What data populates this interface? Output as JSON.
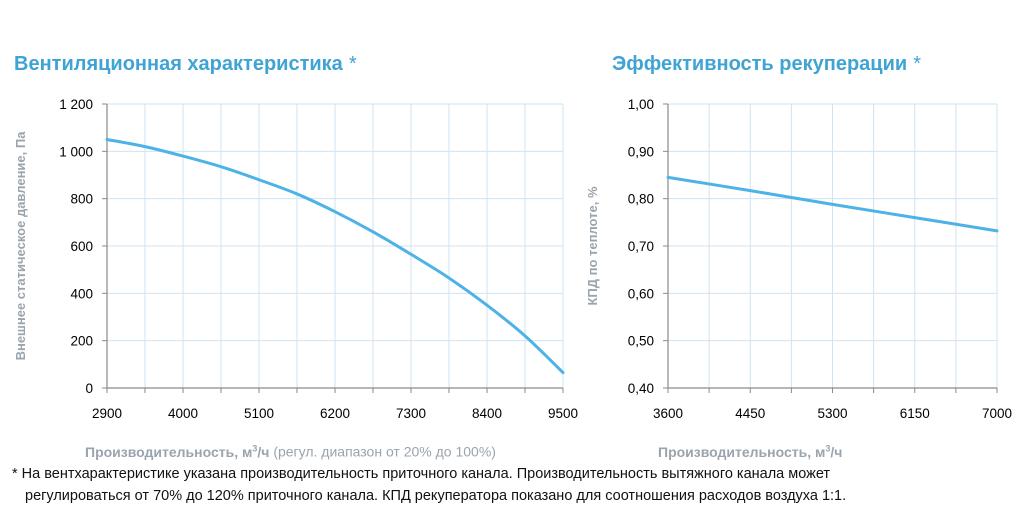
{
  "chart_data": [
    {
      "type": "line",
      "title": "Вентиляционная характеристика",
      "title_mark": "*",
      "xlabel": "Производительность, м³/ч",
      "xlabel_main": "Производительность, м",
      "xlabel_sup": "3",
      "xlabel_unit": "/ч",
      "xlabel_note": "(регул. диапазон от 20% до 100%)",
      "ylabel": "Внешнее статическое давление, Па",
      "x_ticks": [
        "2900",
        "4000",
        "5100",
        "6200",
        "7300",
        "8400",
        "9500"
      ],
      "y_ticks": [
        "0",
        "200",
        "400",
        "600",
        "800",
        "1 000",
        "1 200"
      ],
      "xlim": [
        2900,
        9500
      ],
      "ylim": [
        0,
        1200
      ],
      "grid": true,
      "series": [
        {
          "color": "#4db3e6",
          "x": [
            2900,
            3450,
            4000,
            4550,
            5100,
            5650,
            6200,
            6750,
            7300,
            7850,
            8400,
            8950,
            9500
          ],
          "y": [
            1050,
            1020,
            980,
            935,
            880,
            820,
            745,
            660,
            565,
            465,
            350,
            220,
            65
          ]
        }
      ]
    },
    {
      "type": "line",
      "title": "Эффективность рекуперации",
      "title_mark": "*",
      "xlabel": "Производительность, м³/ч",
      "xlabel_main": "Производительность, м",
      "xlabel_sup": "3",
      "xlabel_unit": "/ч",
      "ylabel": "КПД по теплоте, %",
      "x_ticks": [
        "3600",
        "4450",
        "5300",
        "6150",
        "7000"
      ],
      "y_ticks": [
        "0,40",
        "0,50",
        "0,60",
        "0,70",
        "0,80",
        "0,90",
        "1,00"
      ],
      "xlim": [
        3600,
        7000
      ],
      "ylim": [
        0.4,
        1.0
      ],
      "grid": true,
      "series": [
        {
          "color": "#4db3e6",
          "x": [
            3600,
            4450,
            5300,
            6150,
            7000
          ],
          "y": [
            0.845,
            0.817,
            0.788,
            0.76,
            0.732
          ]
        }
      ]
    }
  ],
  "footnote": {
    "line1": "* На вентхарактеристике указана производительность приточного канала. Производительность вытяжного канала может",
    "line2": "регулироваться от 70% до 120% приточного канала. КПД рекуператора показано для соотношения расходов воздуха 1:1."
  },
  "colors": {
    "title": "#3fa3d4",
    "curve": "#4db3e6",
    "grid": "#cfe3f2",
    "axis_label": "#9aa4ad"
  }
}
